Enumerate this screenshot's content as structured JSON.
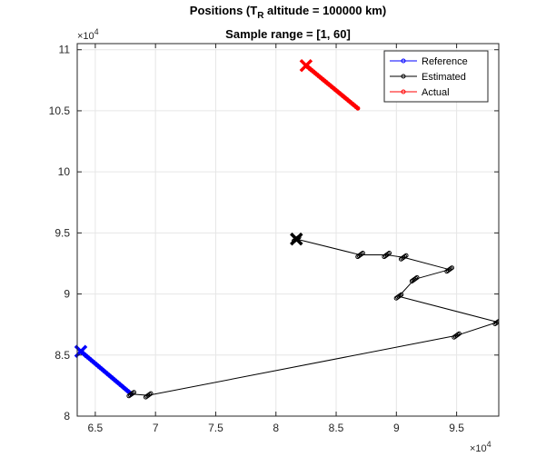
{
  "chart_data": {
    "type": "line",
    "title_parts": {
      "line1_prefix": "Positions (T",
      "line1_subscript": "R",
      "line1_suffix": " altitude = 100000 km)",
      "line2": "Sample range = [1, 60]"
    },
    "xlabel": "",
    "ylabel": "",
    "x_exponent": {
      "base": "×10",
      "power": "4"
    },
    "y_exponent": {
      "base": "×10",
      "power": "4"
    },
    "xlim": [
      6.35,
      9.85
    ],
    "ylim": [
      8.0,
      11.05
    ],
    "xticks": [
      6.5,
      7,
      7.5,
      8,
      8.5,
      9,
      9.5
    ],
    "xtick_labels": [
      "6.5",
      "7",
      "7.5",
      "8",
      "8.5",
      "9",
      "9.5"
    ],
    "yticks": [
      8,
      8.5,
      9,
      9.5,
      10,
      10.5,
      11
    ],
    "ytick_labels": [
      "8",
      "8.5",
      "9",
      "9.5",
      "10",
      "10.5",
      "11"
    ],
    "grid": true,
    "legend_position": "top-right",
    "series": [
      {
        "name": "Reference",
        "color": "#0000ff",
        "marker": "circle",
        "x": [
          6.38,
          6.8
        ],
        "y": [
          8.53,
          8.18
        ]
      },
      {
        "name": "Estimated",
        "color": "#000000",
        "marker": "circle",
        "x": [
          8.17,
          8.7,
          8.92,
          9.06,
          9.44,
          9.15,
          9.02,
          9.84,
          9.5,
          6.94,
          6.8
        ],
        "y": [
          9.45,
          9.32,
          9.32,
          9.3,
          9.2,
          9.12,
          8.98,
          8.77,
          8.66,
          8.17,
          8.18
        ]
      },
      {
        "name": "Actual",
        "color": "#ff0000",
        "marker": "circle",
        "x": [
          8.25,
          8.68
        ],
        "y": [
          10.87,
          10.52
        ]
      }
    ],
    "end_markers": [
      {
        "series": "Reference",
        "symbol": "x",
        "x": 6.38,
        "y": 8.53
      },
      {
        "series": "Estimated",
        "symbol": "x",
        "x": 8.17,
        "y": 9.45
      },
      {
        "series": "Actual",
        "symbol": "x",
        "x": 8.25,
        "y": 10.87
      }
    ]
  }
}
